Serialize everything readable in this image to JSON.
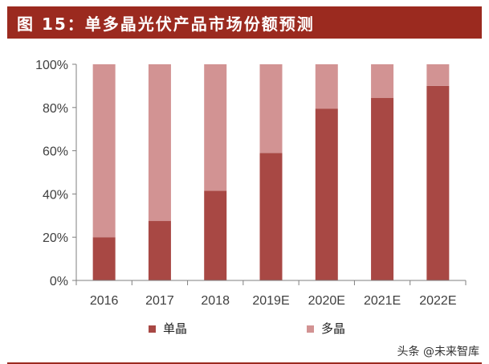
{
  "title": "图 15：单多晶光伏产品市场份额预测",
  "watermark": "头条 @未来智库",
  "colors": {
    "title_bg": "#9b2a1f",
    "mono": "#a84844",
    "poly": "#d29393",
    "axis": "#7f7f7f",
    "text": "#404040"
  },
  "chart_data": {
    "type": "bar",
    "stacked": true,
    "categories": [
      "2016",
      "2017",
      "2018",
      "2019E",
      "2020E",
      "2021E",
      "2022E"
    ],
    "series": [
      {
        "name": "单晶",
        "values": [
          20,
          27.5,
          41.5,
          59,
          79.5,
          84.5,
          90
        ]
      },
      {
        "name": "多晶",
        "values": [
          80,
          72.5,
          58.5,
          41,
          20.5,
          15.5,
          10
        ]
      }
    ],
    "ylim": [
      0,
      100
    ],
    "yticks": [
      "0%",
      "20%",
      "40%",
      "60%",
      "80%",
      "100%"
    ],
    "ytick_values": [
      0,
      20,
      40,
      60,
      80,
      100
    ],
    "legend_position": "bottom",
    "grid": false
  }
}
